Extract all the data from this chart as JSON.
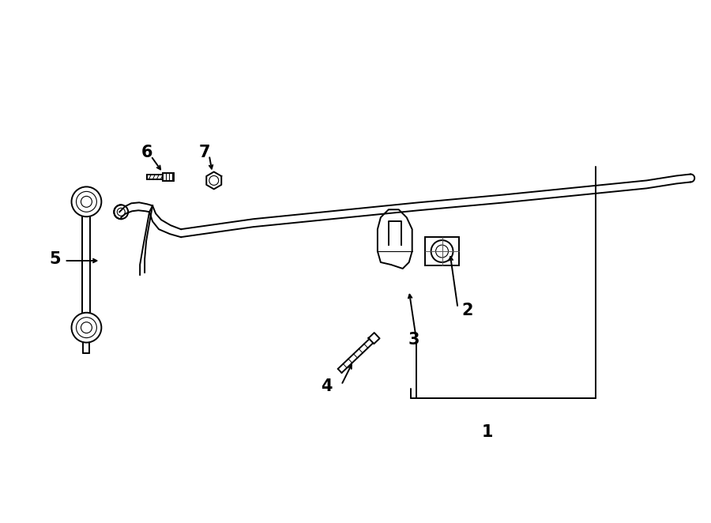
{
  "bg_color": "#ffffff",
  "line_color": "#000000",
  "figsize": [
    9.0,
    6.62
  ],
  "dpi": 100,
  "label_fontsize": 15
}
